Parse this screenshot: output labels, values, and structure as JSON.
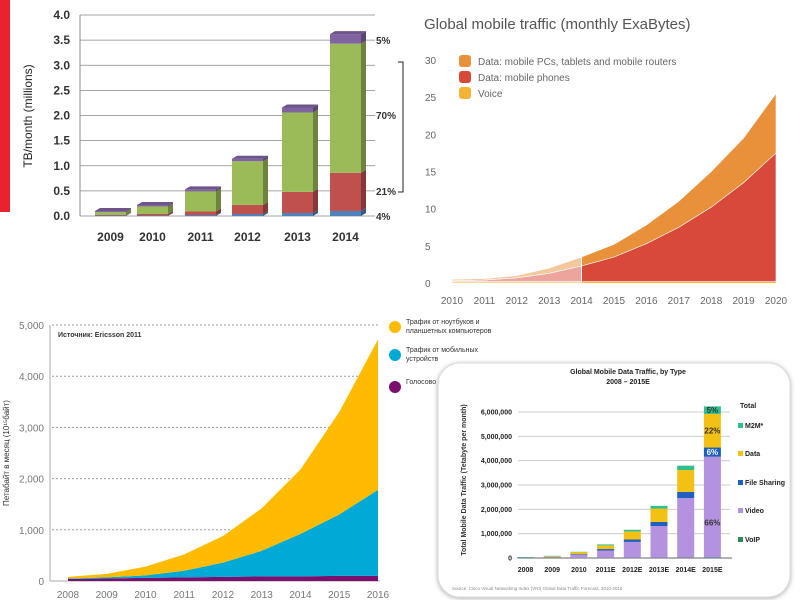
{
  "chart_data": [
    {
      "type": "bar",
      "stacked": true,
      "title": "",
      "ylabel": "TB/month (millions)",
      "ylim": [
        0,
        4.0
      ],
      "yticks": [
        "0.0",
        "0.5",
        "1.0",
        "1.5",
        "2.0",
        "2.5",
        "3.0",
        "3.5",
        "4.0"
      ],
      "categories": [
        "2009",
        "2010",
        "2011",
        "2012",
        "2013",
        "2014"
      ],
      "series": [
        {
          "color": "#4f81bd",
          "values": [
            0.01,
            0.01,
            0.02,
            0.04,
            0.06,
            0.1
          ]
        },
        {
          "color": "#c0504d",
          "values": [
            0.01,
            0.03,
            0.07,
            0.18,
            0.42,
            0.76
          ]
        },
        {
          "color": "#9bbb59",
          "values": [
            0.06,
            0.15,
            0.4,
            0.87,
            1.58,
            2.57
          ]
        },
        {
          "color": "#8064a2",
          "values": [
            0.02,
            0.03,
            0.04,
            0.05,
            0.1,
            0.19
          ]
        }
      ],
      "share_labels": [
        "4%",
        "21%",
        "70%",
        "5%"
      ],
      "grid": true,
      "accent_bar_color": "#e8232d"
    },
    {
      "type": "area",
      "stacked": true,
      "title": "Global mobile traffic (monthly ExaBytes)",
      "ylim": [
        0,
        30
      ],
      "yticks": [
        "0",
        "5",
        "10",
        "15",
        "20",
        "25",
        "30"
      ],
      "x": [
        "2010",
        "2011",
        "2012",
        "2013",
        "2014",
        "2015",
        "2016",
        "2017",
        "2018",
        "2019",
        "2020"
      ],
      "series": [
        {
          "name": "Voice",
          "color": "#f5b335",
          "values": [
            0.2,
            0.2,
            0.2,
            0.2,
            0.2,
            0.2,
            0.2,
            0.2,
            0.2,
            0.2,
            0.2
          ]
        },
        {
          "name": "Data: mobile phones",
          "color": "#d9493a",
          "values": [
            0.1,
            0.2,
            0.5,
            1.1,
            2.1,
            3.3,
            5.1,
            7.3,
            10.0,
            13.3,
            17.3
          ]
        },
        {
          "name": "Data: mobile PCs, tablets and mobile routers",
          "color": "#e8903a",
          "values": [
            0.2,
            0.2,
            0.3,
            0.7,
            1.2,
            1.7,
            2.5,
            3.5,
            4.8,
            6.0,
            8.0
          ]
        }
      ],
      "legend": "top-left",
      "grid": false
    },
    {
      "type": "area",
      "stacked": true,
      "title": "",
      "source_note": "Источник: Ericsson 2011",
      "ylabel": "Петабайт в месяц (10¹⁵байт)",
      "ylim": [
        0,
        5000
      ],
      "yticks": [
        "0",
        "1,000",
        "2,000",
        "3,000",
        "4,000",
        "5,000"
      ],
      "x": [
        "2008",
        "2009",
        "2010",
        "2011",
        "2012",
        "2013",
        "2014",
        "2015",
        "2016"
      ],
      "series": [
        {
          "name": "Голосово",
          "color": "#7b0f6e",
          "values": [
            40,
            50,
            60,
            70,
            80,
            90,
            90,
            100,
            100
          ]
        },
        {
          "name": "Трафик от мобильных устройств",
          "color": "#00a9d6",
          "values": [
            10,
            20,
            50,
            130,
            280,
            500,
            830,
            1200,
            1680
          ]
        },
        {
          "name": "Трафик от ноутбуков и планшетных компьютеров",
          "color": "#ffbb00",
          "values": [
            30,
            70,
            170,
            320,
            520,
            830,
            1260,
            2000,
            2940
          ]
        }
      ],
      "legend": "right",
      "grid": true
    },
    {
      "type": "bar",
      "stacked": true,
      "title": "Global Mobile Data Traffic, by Type",
      "subtitle": "2008 – 2015E",
      "ylabel": "Total Mobile Data Traffic (Tetabyte per month)",
      "ylim": [
        0,
        6500000
      ],
      "yticks": [
        "0",
        "1,000,000",
        "2,000,000",
        "3,000,000",
        "4,000,000",
        "5,000,000",
        "6,000,000"
      ],
      "categories": [
        "2008",
        "2009",
        "2010",
        "2011E",
        "2012E",
        "2013E",
        "2014E",
        "2015E"
      ],
      "series": [
        {
          "name": "VoIP",
          "color": "#2e8b57",
          "values": [
            2000,
            3000,
            5000,
            8000,
            10000,
            12000,
            15000,
            20000
          ]
        },
        {
          "name": "Video",
          "color": "#b592e0",
          "values": [
            10000,
            30000,
            120000,
            300000,
            650000,
            1300000,
            2450000,
            4140000
          ]
        },
        {
          "name": "File Sharing",
          "color": "#1f5fbf",
          "values": [
            5000,
            10000,
            30000,
            60000,
            100000,
            170000,
            250000,
            380000
          ]
        },
        {
          "name": "Data",
          "color": "#f2c114",
          "values": [
            15000,
            40000,
            90000,
            150000,
            330000,
            550000,
            900000,
            1380000
          ]
        },
        {
          "name": "M2M*",
          "color": "#2fbf8f",
          "values": [
            2000,
            5000,
            10000,
            40000,
            70000,
            110000,
            180000,
            310000
          ]
        }
      ],
      "legend_title": "Total",
      "legend": "right",
      "bar_labels_2015E": {
        "Video": "66%",
        "File Sharing": "6%",
        "Data": "22%",
        "M2M*": "5%"
      },
      "source_note": "Source: Cisco Visual Networking Index (VNI) Global Data Traffic Forecast, 2010-2015",
      "grid": true
    }
  ]
}
